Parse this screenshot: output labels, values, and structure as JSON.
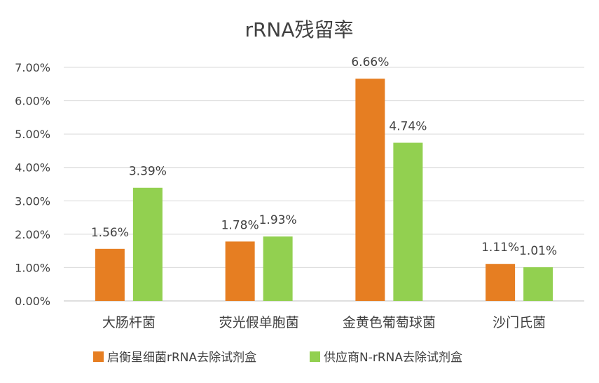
{
  "chart_data": {
    "type": "bar",
    "title": "rRNA残留率",
    "categories": [
      "大肠杆菌",
      "荧光假单胞菌",
      "金黄色葡萄球菌",
      "沙门氏菌"
    ],
    "series": [
      {
        "name": "启衡星细菌rRNA去除试剂盒",
        "values": [
          1.56,
          1.78,
          6.66,
          1.11
        ],
        "labels": [
          "1.56%",
          "1.78%",
          "6.66%",
          "1.11%"
        ],
        "color": "#E67E22"
      },
      {
        "name": "供应商N-rRNA去除试剂盒",
        "values": [
          3.39,
          1.93,
          4.74,
          1.01
        ],
        "labels": [
          "3.39%",
          "1.93%",
          "4.74%",
          "1.01%"
        ],
        "color": "#92D050"
      }
    ],
    "yticks": [
      "0.00%",
      "1.00%",
      "2.00%",
      "3.00%",
      "4.00%",
      "5.00%",
      "6.00%",
      "7.00%"
    ],
    "ylim": [
      0,
      7
    ],
    "grid": true,
    "legend_position": "bottom",
    "gridline_color": "#D9D9D9"
  }
}
